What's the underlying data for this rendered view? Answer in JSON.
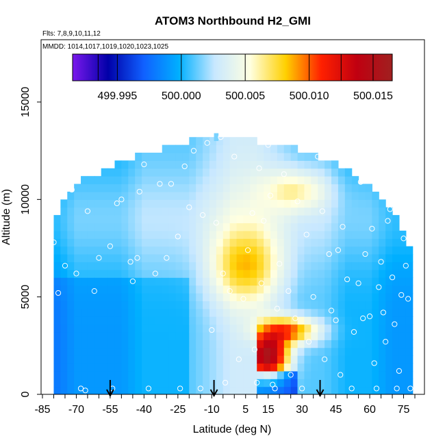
{
  "chart_data": {
    "type": "heatmap",
    "title": "ATOM3 Northbound H2_GMI",
    "flights_note": "Flts: 7,8,9,10,11,12",
    "dates_note": "MMDD: 1014,1017,1019,1020,1023,1025",
    "xlabel": "Latitude (deg N)",
    "ylabel": "Altitude (m)",
    "xlim": [
      -85,
      80
    ],
    "ylim": [
      0,
      17000
    ],
    "x_ticks": [
      "-85",
      "-70",
      "-55",
      "-40",
      "-25",
      "-10",
      "5",
      "15",
      "30",
      "45",
      "60",
      "75"
    ],
    "x_tick_values": [
      -85,
      -70,
      -55,
      -40,
      -25,
      -10,
      5,
      15,
      30,
      45,
      60,
      75
    ],
    "y_ticks": [
      "0",
      "5000",
      "10000",
      "15000"
    ],
    "y_tick_values": [
      0,
      5000,
      10000,
      15000
    ],
    "colorbar": {
      "labels": [
        "499.995",
        "500.000",
        "500.005",
        "500.010",
        "500.015"
      ],
      "label_values": [
        499.995,
        500.0,
        500.005,
        500.01,
        500.015
      ],
      "min": 499.9915,
      "max": 500.0165,
      "colors": [
        "#7a18ec",
        "#0000a8",
        "#1060ff",
        "#00b0ff",
        "#c8e8ff",
        "#ffffe0",
        "#ffd000",
        "#ff2000",
        "#c00010",
        "#a02020"
      ]
    },
    "arrows_latitude": [
      -55,
      -9,
      38
    ],
    "field_columns": [
      {
        "lat": -78,
        "top": 9200,
        "base": 499.999
      },
      {
        "lat": -70,
        "top": 10600,
        "base": 500.0
      },
      {
        "lat": -60,
        "top": 11200,
        "base": 500.0
      },
      {
        "lat": -50,
        "top": 11800,
        "base": 500.0
      },
      {
        "lat": -40,
        "top": 12100,
        "base": 500.001
      },
      {
        "lat": -30,
        "top": 12500,
        "base": 500.001
      },
      {
        "lat": -20,
        "top": 12800,
        "base": 500.001
      },
      {
        "lat": -10,
        "top": 13100,
        "base": 500.002
      },
      {
        "lat": 0,
        "top": 13000,
        "base": 500.003
      },
      {
        "lat": 10,
        "top": 12800,
        "base": 500.003
      },
      {
        "lat": 20,
        "top": 12700,
        "base": 500.002
      },
      {
        "lat": 30,
        "top": 12300,
        "base": 500.001
      },
      {
        "lat": 40,
        "top": 11900,
        "base": 500.001
      },
      {
        "lat": 50,
        "top": 11300,
        "base": 500.0
      },
      {
        "lat": 60,
        "top": 10400,
        "base": 500.0
      },
      {
        "lat": 70,
        "top": 9200,
        "base": 499.999
      },
      {
        "lat": 77,
        "top": 7500,
        "base": 499.999
      }
    ],
    "features": [
      {
        "kind": "mid_yellow",
        "lat": 5,
        "alt": 6500,
        "value": 500.006
      },
      {
        "kind": "upper_yellow",
        "lat": 28,
        "alt": 10500,
        "value": 500.005
      },
      {
        "kind": "low_red",
        "lat": 15,
        "alt": 2000,
        "value": 500.014
      },
      {
        "kind": "low_orange",
        "lat": 25,
        "alt": 3300,
        "value": 500.009
      },
      {
        "kind": "surface_blue",
        "lat": 18,
        "alt": 250,
        "value": 499.996
      }
    ],
    "observations": [
      [
        -80,
        7800
      ],
      [
        -78,
        5200
      ],
      [
        -75,
        6600
      ],
      [
        -72,
        10500
      ],
      [
        -70,
        6200
      ],
      [
        -68,
        300
      ],
      [
        -66,
        200
      ],
      [
        -62,
        5300
      ],
      [
        -60,
        7000
      ],
      [
        -55,
        7600
      ],
      [
        -54,
        300
      ],
      [
        -52,
        9800
      ],
      [
        -50,
        10000
      ],
      [
        -45,
        5800
      ],
      [
        -43,
        7000
      ],
      [
        -42,
        10400
      ],
      [
        -40,
        11800
      ],
      [
        -38,
        300
      ],
      [
        -35,
        6200
      ],
      [
        -33,
        10800
      ],
      [
        -30,
        7000
      ],
      [
        -28,
        10800
      ],
      [
        -25,
        8100
      ],
      [
        -24,
        300
      ],
      [
        -22,
        11700
      ],
      [
        -20,
        9600
      ],
      [
        -18,
        12500
      ],
      [
        -15,
        300
      ],
      [
        -14,
        9200
      ],
      [
        -12,
        12900
      ],
      [
        -10,
        3300
      ],
      [
        -8,
        8800
      ],
      [
        -6,
        13200
      ],
      [
        -4,
        600
      ],
      [
        -2,
        5300
      ],
      [
        0,
        12200
      ],
      [
        2,
        1800
      ],
      [
        4,
        4900
      ],
      [
        6,
        7400
      ],
      [
        8,
        9300
      ],
      [
        9,
        2300
      ],
      [
        10,
        600
      ],
      [
        11,
        11600
      ],
      [
        12,
        5700
      ],
      [
        13,
        8900
      ],
      [
        15,
        12800
      ],
      [
        16,
        10200
      ],
      [
        17,
        500
      ],
      [
        18,
        300
      ],
      [
        20,
        6700
      ],
      [
        22,
        11300
      ],
      [
        24,
        5300
      ],
      [
        25,
        1000
      ],
      [
        27,
        3900
      ],
      [
        28,
        9900
      ],
      [
        30,
        300
      ],
      [
        32,
        8200
      ],
      [
        35,
        5000
      ],
      [
        37,
        12200
      ],
      [
        39,
        9400
      ],
      [
        40,
        1800
      ],
      [
        42,
        7200
      ],
      [
        43,
        4300
      ],
      [
        45,
        3800
      ],
      [
        46,
        7400
      ],
      [
        47,
        1000
      ],
      [
        48,
        8600
      ],
      [
        50,
        5900
      ],
      [
        52,
        300
      ],
      [
        53,
        3200
      ],
      [
        55,
        5700
      ],
      [
        56,
        10900
      ],
      [
        58,
        7200
      ],
      [
        60,
        4000
      ],
      [
        61,
        8500
      ],
      [
        62,
        1600
      ],
      [
        63,
        300
      ],
      [
        64,
        5500
      ],
      [
        65,
        6800
      ],
      [
        66,
        4200
      ],
      [
        67,
        2700
      ],
      [
        68,
        8900
      ],
      [
        70,
        6000
      ],
      [
        71,
        3600
      ],
      [
        72,
        300
      ],
      [
        73,
        1200
      ],
      [
        74,
        5100
      ],
      [
        75,
        8000
      ],
      [
        76,
        6600
      ],
      [
        77,
        4900
      ],
      [
        78,
        300
      ],
      [
        -65,
        9400
      ],
      [
        -46,
        6800
      ],
      [
        -5,
        6200
      ],
      [
        19,
        4400
      ],
      [
        33,
        2700
      ],
      [
        57,
        3900
      ],
      [
        69,
        9500
      ]
    ]
  }
}
